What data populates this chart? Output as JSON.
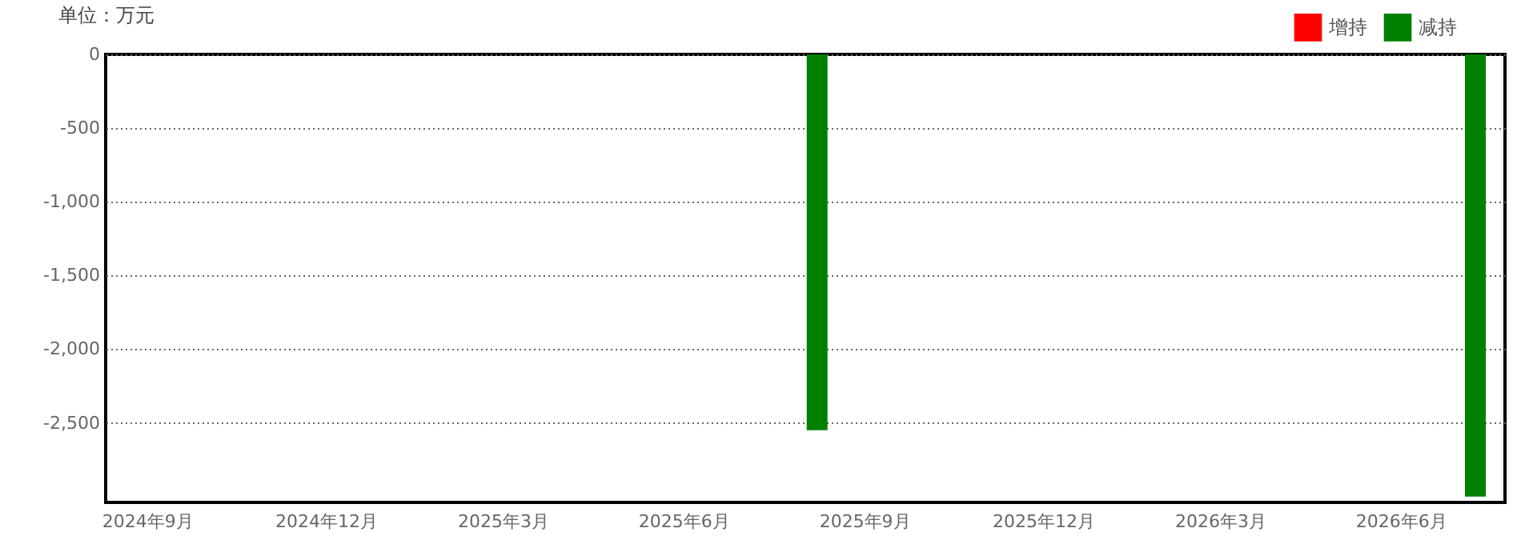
{
  "chart_data": {
    "type": "bar",
    "ylabel": "单位：万元",
    "series": [
      {
        "name": "增持",
        "color": "#ff0000"
      },
      {
        "name": "减持",
        "color": "#008000",
        "x": [
          "2025-08-08",
          "2026-07-09"
        ],
        "values": [
          -2550,
          -3000
        ]
      }
    ],
    "xlim": [
      "2024-08-15",
      "2026-07-20"
    ],
    "xticks": [
      {
        "value": "2024-09",
        "label": "2024年9月"
      },
      {
        "value": "2024-12",
        "label": "2024年12月"
      },
      {
        "value": "2025-03",
        "label": "2025年3月"
      },
      {
        "value": "2025-06",
        "label": "2025年6月"
      },
      {
        "value": "2025-09",
        "label": "2025年9月"
      },
      {
        "value": "2025-12",
        "label": "2025年12月"
      },
      {
        "value": "2026-03",
        "label": "2026年3月"
      },
      {
        "value": "2026-06",
        "label": "2026年6月"
      }
    ],
    "ylim": [
      -3040,
      0
    ],
    "yticks": [
      {
        "value": 0,
        "label": "0"
      },
      {
        "value": -500,
        "label": "-500"
      },
      {
        "value": -1000,
        "label": "-1,000"
      },
      {
        "value": -1500,
        "label": "-1,500"
      },
      {
        "value": -2000,
        "label": "-2,000"
      },
      {
        "value": -2500,
        "label": "-2,500"
      }
    ],
    "grid": "y",
    "legend": "top right"
  }
}
